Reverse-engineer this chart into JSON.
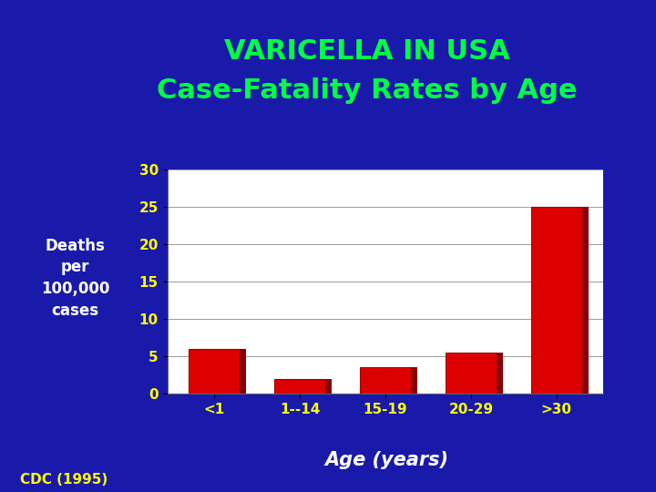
{
  "title_line1": "VARICELLA IN USA",
  "title_line2": "Case-Fatality Rates by Age",
  "title_color": "#00ff44",
  "background_color": "#1a1aaa",
  "categories": [
    "<1",
    "1--14",
    "15-19",
    "20-29",
    ">30"
  ],
  "values": [
    6.0,
    2.0,
    3.5,
    5.5,
    25.0
  ],
  "bar_color": "#dd0000",
  "bar_edge_color": "#990000",
  "plot_bg_color": "#ffffff",
  "ylabel_lines": [
    "Deaths",
    "per",
    "100,000",
    "cases"
  ],
  "ylabel_color": "#ffffff",
  "xlabel": "Age (years)",
  "xlabel_color": "#ffffff",
  "tick_label_color": "#ffff00",
  "ytick_values": [
    0,
    5,
    10,
    15,
    20,
    25,
    30
  ],
  "ylim": [
    0,
    30
  ],
  "footnote": "CDC (1995)",
  "footnote_color": "#ffff00",
  "title_fontsize": 22,
  "ylabel_fontsize": 12,
  "xlabel_fontsize": 15,
  "tick_fontsize": 11,
  "footnote_fontsize": 11
}
